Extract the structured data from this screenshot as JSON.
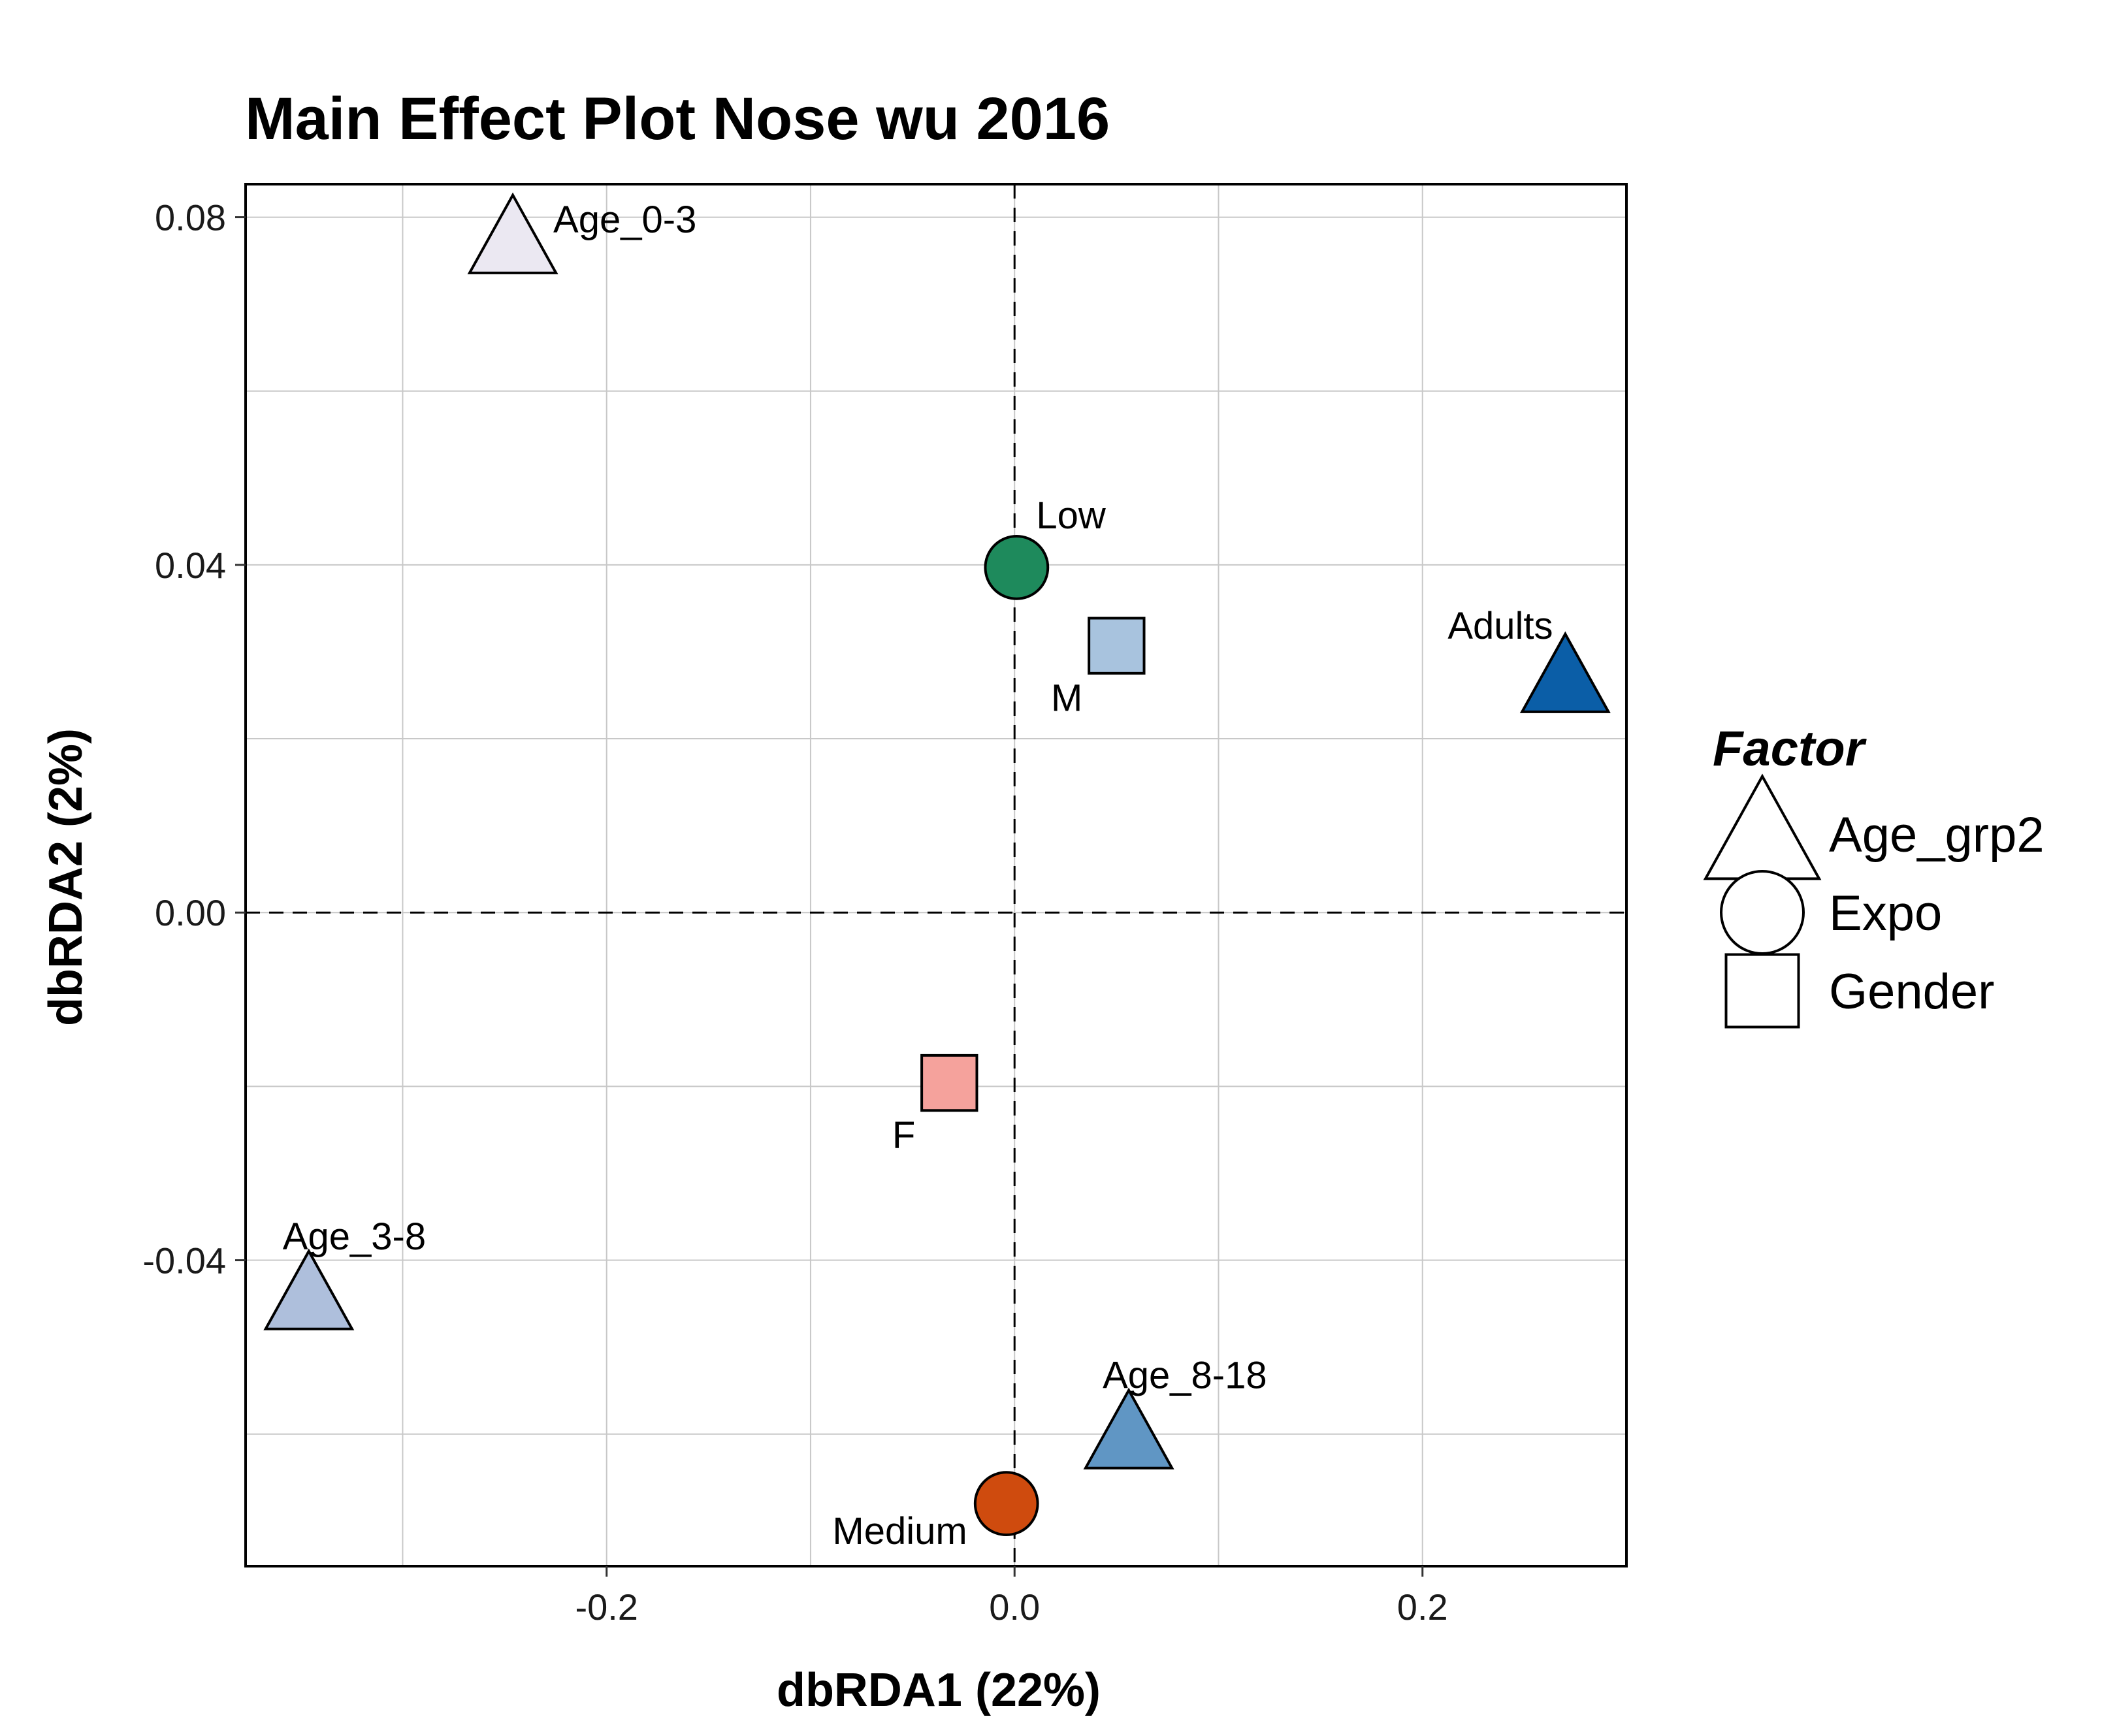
{
  "chart_data": {
    "type": "scatter",
    "title": "Main Effect Plot Nose wu 2016",
    "xlabel": "dbRDA1 (22%)",
    "ylabel": "dbRDA2 (2%)",
    "xlim": [
      -0.377,
      0.3
    ],
    "ylim": [
      -0.0752,
      0.0838
    ],
    "x_ticks": [
      -0.2,
      0.0,
      0.2
    ],
    "x_tick_labels": [
      "-0.2",
      "0.0",
      "0.2"
    ],
    "y_ticks": [
      -0.04,
      0.0,
      0.04,
      0.08
    ],
    "y_tick_labels": [
      "-0.04",
      "0.00",
      "0.04",
      "0.08"
    ],
    "grid": true,
    "reference_lines": {
      "x": 0,
      "y": 0,
      "style": "dashed"
    },
    "legend": {
      "title": "Factor",
      "position": "right",
      "items": [
        {
          "label": "Age_grp2",
          "shape": "triangle"
        },
        {
          "label": "Expo",
          "shape": "circle"
        },
        {
          "label": "Gender",
          "shape": "square"
        }
      ]
    },
    "points": [
      {
        "label": "Age_0-3",
        "factor": "Age_grp2",
        "shape": "triangle",
        "x": -0.246,
        "y": 0.0775,
        "color": "#ebe8f2",
        "label_pos": "right"
      },
      {
        "label": "Age_3-8",
        "factor": "Age_grp2",
        "shape": "triangle",
        "x": -0.346,
        "y": -0.044,
        "color": "#aebfdc",
        "label_pos": "above-right"
      },
      {
        "label": "Age_8-18",
        "factor": "Age_grp2",
        "shape": "triangle",
        "x": 0.056,
        "y": -0.06,
        "color": "#6096c4",
        "label_pos": "above-right"
      },
      {
        "label": "Adults",
        "factor": "Age_grp2",
        "shape": "triangle",
        "x": 0.27,
        "y": 0.027,
        "color": "#0b5ea7",
        "label_pos": "above-left"
      },
      {
        "label": "Low",
        "factor": "Expo",
        "shape": "circle",
        "x": 0.001,
        "y": 0.0397,
        "color": "#1e8a5c",
        "label_pos": "above-right"
      },
      {
        "label": "Medium",
        "factor": "Expo",
        "shape": "circle",
        "x": -0.004,
        "y": -0.068,
        "color": "#cf4b0e",
        "label_pos": "below-left"
      },
      {
        "label": "M",
        "factor": "Gender",
        "shape": "square",
        "x": 0.05,
        "y": 0.0307,
        "color": "#a8c3de",
        "label_pos": "below-left"
      },
      {
        "label": "F",
        "factor": "Gender",
        "shape": "square",
        "x": -0.032,
        "y": -0.0196,
        "color": "#f5a29c",
        "label_pos": "below-left"
      }
    ]
  }
}
